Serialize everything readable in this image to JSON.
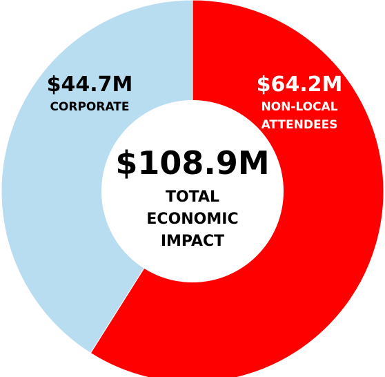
{
  "chart_data": {
    "type": "pie",
    "unit": "$M",
    "series": [
      {
        "name": "NON-LOCAL ATTENDEES",
        "value": 64.2,
        "value_label": "$64.2M",
        "label_lines": [
          "NON-LOCAL",
          "ATTENDEES"
        ],
        "color": "#ff0000",
        "text_color": "#ffffff"
      },
      {
        "name": "CORPORATE",
        "value": 44.7,
        "value_label": "$44.7M",
        "label_lines": [
          "CORPORATE"
        ],
        "color": "#b8dcf0",
        "text_color": "#000000"
      }
    ],
    "center": {
      "value_label": "$108.9M",
      "caption_lines": [
        "TOTAL",
        "ECONOMIC",
        "IMPACT"
      ]
    },
    "start_angle_deg": 0,
    "direction": "clockwise",
    "hole": "donut"
  }
}
